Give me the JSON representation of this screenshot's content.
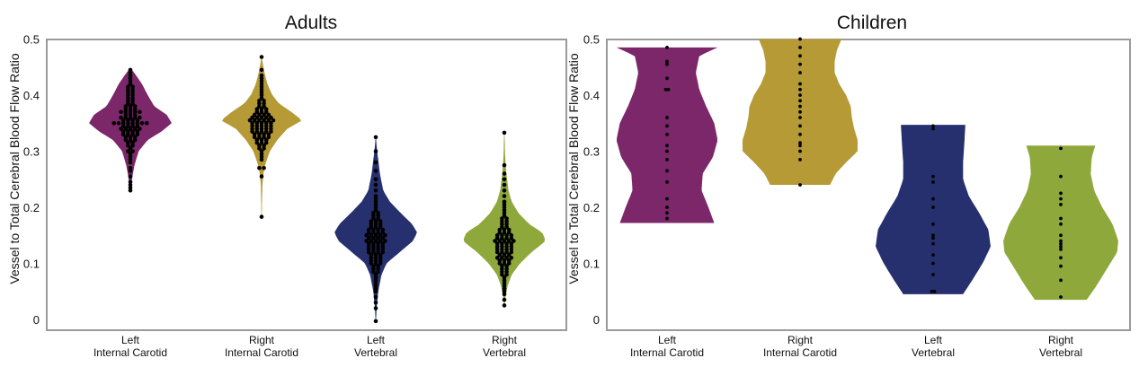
{
  "chart_data": [
    {
      "type": "violin",
      "title": "Adults",
      "ylabel": "Vessel to Total Cerebral Blood Flow Ratio",
      "ylim": [
        -0.02,
        0.5
      ],
      "yticks": [
        "0",
        "0.1",
        "0.2",
        "0.3",
        "0.4",
        "0.5"
      ],
      "yticks_values": [
        0,
        0.1,
        0.2,
        0.3,
        0.4,
        0.5
      ],
      "categories": [
        {
          "line1": "Left",
          "line2": "Internal Carotid"
        },
        {
          "line1": "Right",
          "line2": "Internal Carotid"
        },
        {
          "line1": "Left",
          "line2": "Vertebral"
        },
        {
          "line1": "Right",
          "line2": "Vertebral"
        }
      ],
      "series": [
        {
          "name": "Left Internal Carotid",
          "color": "#7b2769",
          "min": 0.23,
          "max": 0.448,
          "profile": [
            [
              0.23,
              0.008
            ],
            [
              0.24,
              0.025
            ],
            [
              0.255,
              0.05
            ],
            [
              0.275,
              0.1
            ],
            [
              0.3,
              0.2
            ],
            [
              0.32,
              0.42
            ],
            [
              0.335,
              0.75
            ],
            [
              0.35,
              1.0
            ],
            [
              0.365,
              0.88
            ],
            [
              0.38,
              0.58
            ],
            [
              0.4,
              0.42
            ],
            [
              0.42,
              0.28
            ],
            [
              0.435,
              0.14
            ],
            [
              0.448,
              0.01
            ]
          ],
          "points": [
            0.23,
            0.235,
            0.24,
            0.245,
            0.255,
            0.265,
            0.27,
            0.28,
            0.285,
            0.29,
            0.295,
            0.3,
            0.3,
            0.305,
            0.31,
            0.31,
            0.315,
            0.315,
            0.32,
            0.32,
            0.32,
            0.325,
            0.325,
            0.325,
            0.33,
            0.33,
            0.33,
            0.33,
            0.335,
            0.335,
            0.335,
            0.335,
            0.34,
            0.34,
            0.34,
            0.34,
            0.34,
            0.345,
            0.345,
            0.345,
            0.345,
            0.35,
            0.35,
            0.35,
            0.35,
            0.35,
            0.35,
            0.35,
            0.35,
            0.355,
            0.355,
            0.355,
            0.355,
            0.36,
            0.36,
            0.36,
            0.36,
            0.36,
            0.365,
            0.365,
            0.365,
            0.37,
            0.37,
            0.37,
            0.37,
            0.37,
            0.375,
            0.375,
            0.375,
            0.38,
            0.38,
            0.38,
            0.385,
            0.385,
            0.39,
            0.39,
            0.395,
            0.395,
            0.4,
            0.4,
            0.405,
            0.405,
            0.41,
            0.41,
            0.415,
            0.415,
            0.42,
            0.425,
            0.43,
            0.435,
            0.44,
            0.445
          ]
        },
        {
          "name": "Right Internal Carotid",
          "color": "#b59a35",
          "min": 0.183,
          "max": 0.468,
          "profile": [
            [
              0.183,
              0.005
            ],
            [
              0.21,
              0.01
            ],
            [
              0.24,
              0.02
            ],
            [
              0.27,
              0.06
            ],
            [
              0.3,
              0.2
            ],
            [
              0.32,
              0.38
            ],
            [
              0.34,
              0.62
            ],
            [
              0.355,
              0.98
            ],
            [
              0.37,
              0.72
            ],
            [
              0.385,
              0.42
            ],
            [
              0.4,
              0.26
            ],
            [
              0.42,
              0.14
            ],
            [
              0.44,
              0.07
            ],
            [
              0.46,
              0.02
            ],
            [
              0.468,
              0.005
            ]
          ],
          "points": [
            0.183,
            0.255,
            0.27,
            0.27,
            0.285,
            0.29,
            0.295,
            0.3,
            0.305,
            0.305,
            0.31,
            0.31,
            0.315,
            0.315,
            0.315,
            0.32,
            0.32,
            0.32,
            0.325,
            0.325,
            0.325,
            0.325,
            0.33,
            0.33,
            0.33,
            0.33,
            0.335,
            0.335,
            0.335,
            0.335,
            0.335,
            0.34,
            0.34,
            0.34,
            0.34,
            0.34,
            0.345,
            0.345,
            0.345,
            0.345,
            0.345,
            0.35,
            0.35,
            0.35,
            0.35,
            0.35,
            0.355,
            0.355,
            0.355,
            0.355,
            0.355,
            0.355,
            0.36,
            0.36,
            0.36,
            0.36,
            0.36,
            0.365,
            0.365,
            0.365,
            0.365,
            0.37,
            0.37,
            0.37,
            0.375,
            0.375,
            0.375,
            0.38,
            0.38,
            0.385,
            0.385,
            0.39,
            0.39,
            0.395,
            0.4,
            0.405,
            0.41,
            0.415,
            0.42,
            0.425,
            0.43,
            0.435,
            0.445,
            0.468
          ]
        },
        {
          "name": "Left Vertebral",
          "color": "#27306f",
          "min": -0.003,
          "max": 0.325,
          "profile": [
            [
              -0.003,
              0.005
            ],
            [
              0.02,
              0.02
            ],
            [
              0.05,
              0.06
            ],
            [
              0.08,
              0.14
            ],
            [
              0.1,
              0.26
            ],
            [
              0.12,
              0.58
            ],
            [
              0.14,
              0.9
            ],
            [
              0.155,
              1.0
            ],
            [
              0.17,
              0.88
            ],
            [
              0.19,
              0.6
            ],
            [
              0.21,
              0.34
            ],
            [
              0.23,
              0.18
            ],
            [
              0.26,
              0.1
            ],
            [
              0.29,
              0.05
            ],
            [
              0.31,
              0.02
            ],
            [
              0.325,
              0.005
            ]
          ],
          "points": [
            -0.003,
            0.02,
            0.03,
            0.04,
            0.05,
            0.055,
            0.06,
            0.065,
            0.07,
            0.075,
            0.08,
            0.085,
            0.085,
            0.09,
            0.09,
            0.095,
            0.095,
            0.1,
            0.1,
            0.1,
            0.105,
            0.105,
            0.105,
            0.11,
            0.11,
            0.11,
            0.115,
            0.115,
            0.115,
            0.12,
            0.12,
            0.12,
            0.12,
            0.125,
            0.125,
            0.125,
            0.125,
            0.13,
            0.13,
            0.13,
            0.13,
            0.135,
            0.135,
            0.135,
            0.135,
            0.14,
            0.14,
            0.14,
            0.14,
            0.14,
            0.145,
            0.145,
            0.145,
            0.145,
            0.15,
            0.15,
            0.15,
            0.15,
            0.15,
            0.155,
            0.155,
            0.155,
            0.155,
            0.16,
            0.16,
            0.16,
            0.16,
            0.165,
            0.165,
            0.165,
            0.17,
            0.17,
            0.17,
            0.175,
            0.175,
            0.175,
            0.18,
            0.18,
            0.185,
            0.185,
            0.19,
            0.19,
            0.195,
            0.2,
            0.205,
            0.21,
            0.215,
            0.22,
            0.23,
            0.24,
            0.25,
            0.265,
            0.28,
            0.3,
            0.325
          ]
        },
        {
          "name": "Right Vertebral",
          "color": "#8fa83b",
          "min": 0.025,
          "max": 0.333,
          "profile": [
            [
              0.025,
              0.005
            ],
            [
              0.04,
              0.03
            ],
            [
              0.06,
              0.08
            ],
            [
              0.08,
              0.18
            ],
            [
              0.1,
              0.38
            ],
            [
              0.12,
              0.66
            ],
            [
              0.14,
              1.0
            ],
            [
              0.155,
              0.92
            ],
            [
              0.17,
              0.6
            ],
            [
              0.19,
              0.34
            ],
            [
              0.21,
              0.18
            ],
            [
              0.23,
              0.1
            ],
            [
              0.26,
              0.05
            ],
            [
              0.29,
              0.02
            ],
            [
              0.333,
              0.005
            ]
          ],
          "points": [
            0.025,
            0.035,
            0.045,
            0.05,
            0.055,
            0.06,
            0.065,
            0.07,
            0.075,
            0.08,
            0.08,
            0.085,
            0.085,
            0.09,
            0.09,
            0.095,
            0.095,
            0.1,
            0.1,
            0.1,
            0.105,
            0.105,
            0.105,
            0.11,
            0.11,
            0.11,
            0.11,
            0.115,
            0.115,
            0.115,
            0.12,
            0.12,
            0.12,
            0.12,
            0.125,
            0.125,
            0.125,
            0.125,
            0.13,
            0.13,
            0.13,
            0.13,
            0.135,
            0.135,
            0.135,
            0.135,
            0.14,
            0.14,
            0.14,
            0.14,
            0.14,
            0.145,
            0.145,
            0.145,
            0.145,
            0.15,
            0.15,
            0.15,
            0.15,
            0.155,
            0.155,
            0.155,
            0.16,
            0.16,
            0.16,
            0.165,
            0.165,
            0.17,
            0.17,
            0.175,
            0.175,
            0.18,
            0.18,
            0.185,
            0.19,
            0.195,
            0.2,
            0.205,
            0.21,
            0.22,
            0.23,
            0.24,
            0.25,
            0.26,
            0.275,
            0.333
          ]
        }
      ]
    },
    {
      "type": "violin",
      "title": "Children",
      "ylabel": "Vessel to Total Cerebral Blood Flow Ratio",
      "ylim": [
        -0.02,
        0.5
      ],
      "yticks": [
        "0",
        "0.1",
        "0.2",
        "0.3",
        "0.4",
        "0.5"
      ],
      "yticks_values": [
        0,
        0.1,
        0.2,
        0.3,
        0.4,
        0.5
      ],
      "categories": [
        {
          "line1": "Left",
          "line2": "Internal Carotid"
        },
        {
          "line1": "Right",
          "line2": "Internal Carotid"
        },
        {
          "line1": "Left",
          "line2": "Vertebral"
        },
        {
          "line1": "Right",
          "line2": "Vertebral"
        }
      ],
      "series": [
        {
          "name": "Left Internal Carotid",
          "color": "#7b2769",
          "min": 0.172,
          "max": 0.485,
          "profile": [
            [
              0.172,
              0.82
            ],
            [
              0.2,
              0.72
            ],
            [
              0.23,
              0.6
            ],
            [
              0.26,
              0.62
            ],
            [
              0.29,
              0.8
            ],
            [
              0.32,
              0.88
            ],
            [
              0.35,
              0.82
            ],
            [
              0.38,
              0.68
            ],
            [
              0.41,
              0.56
            ],
            [
              0.44,
              0.5
            ],
            [
              0.47,
              0.56
            ],
            [
              0.485,
              0.88
            ]
          ],
          "points": [
            0.18,
            0.19,
            0.2,
            0.215,
            0.245,
            0.265,
            0.285,
            0.3,
            0.31,
            0.33,
            0.345,
            0.36,
            0.41,
            0.41,
            0.43,
            0.455,
            0.46,
            0.485
          ]
        },
        {
          "name": "Right Internal Carotid",
          "color": "#b59a35",
          "min": 0.24,
          "max": 0.5,
          "profile": [
            [
              0.24,
              0.52
            ],
            [
              0.26,
              0.62
            ],
            [
              0.28,
              0.8
            ],
            [
              0.3,
              1.0
            ],
            [
              0.32,
              1.0
            ],
            [
              0.34,
              0.94
            ],
            [
              0.36,
              0.9
            ],
            [
              0.38,
              0.88
            ],
            [
              0.4,
              0.8
            ],
            [
              0.42,
              0.68
            ],
            [
              0.44,
              0.6
            ],
            [
              0.46,
              0.6
            ],
            [
              0.48,
              0.64
            ],
            [
              0.5,
              0.72
            ]
          ],
          "points": [
            0.24,
            0.285,
            0.3,
            0.31,
            0.315,
            0.33,
            0.345,
            0.36,
            0.37,
            0.38,
            0.39,
            0.4,
            0.41,
            0.42,
            0.44,
            0.455,
            0.47,
            0.485,
            0.5
          ]
        },
        {
          "name": "Left Vertebral",
          "color": "#27306f",
          "min": 0.045,
          "max": 0.347,
          "profile": [
            [
              0.045,
              0.52
            ],
            [
              0.07,
              0.68
            ],
            [
              0.1,
              0.86
            ],
            [
              0.13,
              1.0
            ],
            [
              0.16,
              0.96
            ],
            [
              0.19,
              0.8
            ],
            [
              0.22,
              0.62
            ],
            [
              0.25,
              0.52
            ],
            [
              0.28,
              0.52
            ],
            [
              0.31,
              0.54
            ],
            [
              0.347,
              0.56
            ]
          ],
          "points": [
            0.05,
            0.05,
            0.08,
            0.1,
            0.115,
            0.135,
            0.145,
            0.15,
            0.17,
            0.2,
            0.215,
            0.245,
            0.255,
            0.34,
            0.345
          ]
        },
        {
          "name": "Right Vertebral",
          "color": "#8fa83b",
          "min": 0.035,
          "max": 0.31,
          "profile": [
            [
              0.035,
              0.45
            ],
            [
              0.06,
              0.62
            ],
            [
              0.09,
              0.8
            ],
            [
              0.12,
              0.98
            ],
            [
              0.14,
              1.0
            ],
            [
              0.17,
              0.9
            ],
            [
              0.2,
              0.72
            ],
            [
              0.23,
              0.58
            ],
            [
              0.26,
              0.52
            ],
            [
              0.29,
              0.54
            ],
            [
              0.31,
              0.6
            ]
          ],
          "points": [
            0.04,
            0.07,
            0.095,
            0.11,
            0.125,
            0.13,
            0.135,
            0.14,
            0.15,
            0.17,
            0.18,
            0.205,
            0.215,
            0.225,
            0.255,
            0.305
          ]
        }
      ]
    }
  ]
}
